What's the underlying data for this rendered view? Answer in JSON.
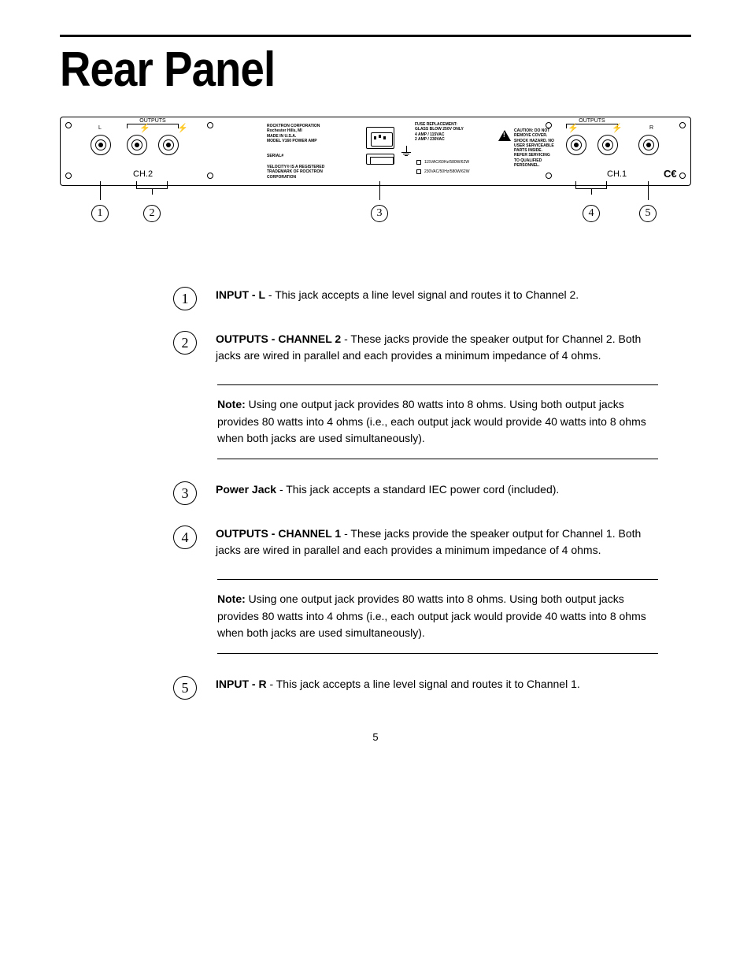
{
  "title": "Rear Panel",
  "page_number": "5",
  "colors": {
    "ink": "#000000",
    "paper": "#ffffff"
  },
  "panel": {
    "ch2_label": "CH.2",
    "ch1_label": "CH.1",
    "outputs_label": "OUTPUTS",
    "port_left": "L",
    "port_right": "R",
    "ce_mark": "C€",
    "company_block": "ROCKTRON CORPORATION\nRochester Hills, MI\nMADE IN U.S.A.\nMODEL V160 POWER AMP",
    "serial_label": "SERIAL#",
    "trademark_block": "VELOCITY® IS A REGISTERED\nTRADEMARK OF ROCKTRON\nCORPORATION",
    "fuse_block": "FUSE REPLACEMENT:\nGLASS BLOW 250V ONLY\n4 AMP / 115VAC\n2 AMP / 230VAC",
    "caution_block": "CAUTION: DO NOT\nREMOVE COVER.\nSHOCK HAZARD. NO\nUSER SERVICEABLE\nPARTS INSIDE.\nREFER SERVICING\nTO QUALIFIED\nPERSONNEL.",
    "volt_115": "115VAC/60Hz/580W/62W",
    "volt_230": "230VAC/50Hz/580W/62W"
  },
  "callouts": [
    1,
    2,
    3,
    4,
    5
  ],
  "definitions": [
    {
      "num": 1,
      "label_bold": "INPUT - L",
      "text": " - This jack accepts a line level signal and routes it to Channel 2."
    },
    {
      "num": 2,
      "label_bold": "OUTPUTS - CHANNEL 2",
      "text": " - These jacks provide the speaker output for Channel 2. Both jacks are wired in parallel and each provides a minimum impedance of 4 ohms."
    },
    {
      "num": 3,
      "label_bold": "Power Jack",
      "text": " - This jack accepts a standard IEC power cord (included)."
    },
    {
      "num": 4,
      "label_bold": "OUTPUTS - CHANNEL 1",
      "text": " - These jacks provide the speaker output for Channel 1. Both jacks are wired in parallel and each provides a minimum impedance of 4 ohms."
    },
    {
      "num": 5,
      "label_bold": "INPUT - R",
      "text": " - This jack accepts a line level signal and routes it to Channel 1."
    }
  ],
  "notes": [
    {
      "after_def_index": 1,
      "bold": "Note:",
      "text": " Using one output jack provides 80 watts into 8 ohms. Using both output jacks provides 80 watts into 4 ohms (i.e., each output jack would provide 40 watts into 8 ohms when both jacks are used simultaneously)."
    },
    {
      "after_def_index": 3,
      "bold": "Note:",
      "text": " Using one output jack provides 80 watts into 8 ohms. Using both output jacks provides 80 watts into 4 ohms (i.e., each output jack would provide 40 watts into 8 ohms when both jacks are used simultaneously)."
    }
  ]
}
